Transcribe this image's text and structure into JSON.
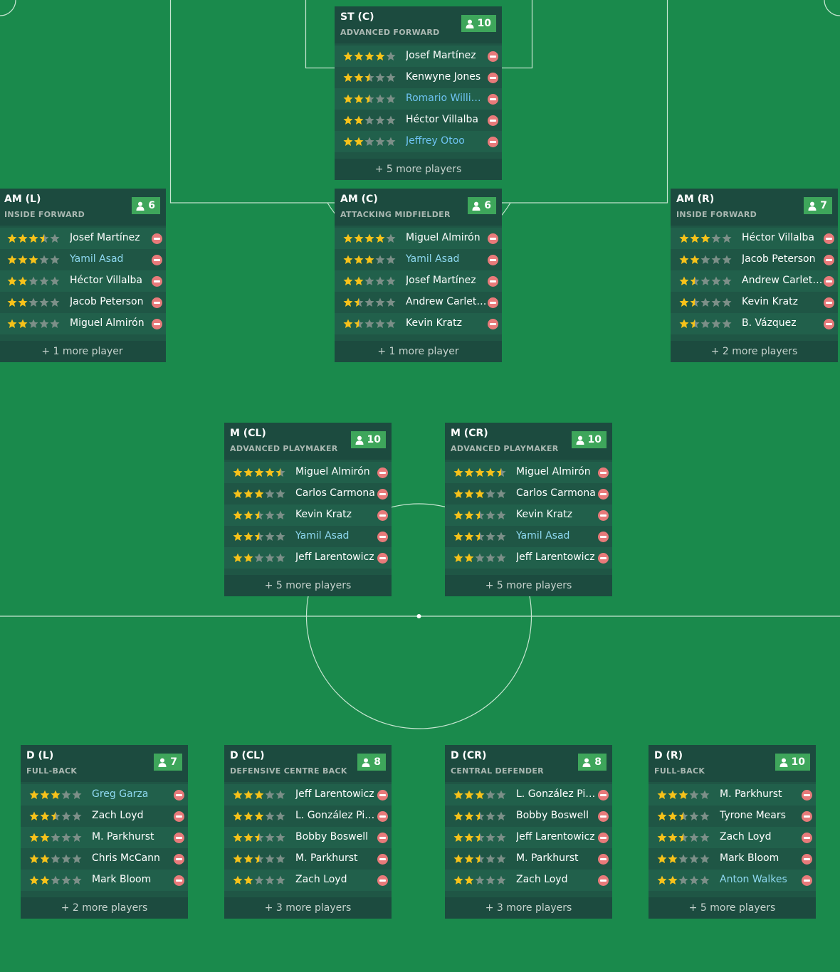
{
  "colors": {
    "pitch": "#1a8a4c",
    "card_body": "#1f5645",
    "card_header": "#1c4b3f",
    "badge": "#3ea65b",
    "star_filled": "#f6c21a",
    "star_empty": "#7c8f88",
    "remove": "#e87a7a",
    "loan_name": "#8ed8f0"
  },
  "icons": {
    "count": "person-icon",
    "rating": "star-icon",
    "remove": "minus-circle-icon"
  },
  "positions": [
    {
      "id": "st-c",
      "position": "ST (C)",
      "role": "ADVANCED FORWARD",
      "count": "10",
      "players": [
        {
          "name": "Josef Martínez",
          "stars": 4,
          "style": ""
        },
        {
          "name": "Kenwyne Jones",
          "stars": 2.5,
          "style": ""
        },
        {
          "name": "Romario Williams",
          "stars": 2.5,
          "style": "blue"
        },
        {
          "name": "Héctor Villalba",
          "stars": 2,
          "style": ""
        },
        {
          "name": "Jeffrey Otoo",
          "stars": 2,
          "style": "blue"
        }
      ],
      "more": "+ 5 more players"
    },
    {
      "id": "am-l",
      "position": "AM (L)",
      "role": "INSIDE FORWARD",
      "count": "6",
      "players": [
        {
          "name": "Josef Martínez",
          "stars": 3.5,
          "style": ""
        },
        {
          "name": "Yamil Asad",
          "stars": 3,
          "style": "loan"
        },
        {
          "name": "Héctor Villalba",
          "stars": 2,
          "style": ""
        },
        {
          "name": "Jacob Peterson",
          "stars": 2,
          "style": ""
        },
        {
          "name": "Miguel Almirón",
          "stars": 2,
          "style": ""
        }
      ],
      "more": "+ 1 more player"
    },
    {
      "id": "am-c",
      "position": "AM (C)",
      "role": "ATTACKING MIDFIELDER",
      "count": "6",
      "players": [
        {
          "name": "Miguel Almirón",
          "stars": 4,
          "style": ""
        },
        {
          "name": "Yamil Asad",
          "stars": 3,
          "style": "loan"
        },
        {
          "name": "Josef Martínez",
          "stars": 2,
          "style": ""
        },
        {
          "name": "Andrew Carleton",
          "stars": 1.5,
          "style": ""
        },
        {
          "name": "Kevin Kratz",
          "stars": 1.5,
          "style": ""
        }
      ],
      "more": "+ 1 more player"
    },
    {
      "id": "am-r",
      "position": "AM (R)",
      "role": "INSIDE FORWARD",
      "count": "7",
      "players": [
        {
          "name": "Héctor Villalba",
          "stars": 3,
          "style": ""
        },
        {
          "name": "Jacob Peterson",
          "stars": 2,
          "style": ""
        },
        {
          "name": "Andrew Carleton",
          "stars": 1.5,
          "style": ""
        },
        {
          "name": "Kevin Kratz",
          "stars": 1.5,
          "style": ""
        },
        {
          "name": "B. Vázquez",
          "stars": 1.5,
          "style": ""
        }
      ],
      "more": "+ 2 more players"
    },
    {
      "id": "m-cl",
      "position": "M (CL)",
      "role": "ADVANCED PLAYMAKER",
      "count": "10",
      "players": [
        {
          "name": "Miguel Almirón",
          "stars": 4.5,
          "style": ""
        },
        {
          "name": "Carlos Carmona",
          "stars": 3,
          "style": ""
        },
        {
          "name": "Kevin Kratz",
          "stars": 2.5,
          "style": ""
        },
        {
          "name": "Yamil Asad",
          "stars": 2.5,
          "style": "loan"
        },
        {
          "name": "Jeff Larentowicz",
          "stars": 2,
          "style": ""
        }
      ],
      "more": "+ 5 more players"
    },
    {
      "id": "m-cr",
      "position": "M (CR)",
      "role": "ADVANCED PLAYMAKER",
      "count": "10",
      "players": [
        {
          "name": "Miguel Almirón",
          "stars": 4.5,
          "style": ""
        },
        {
          "name": "Carlos Carmona",
          "stars": 3,
          "style": ""
        },
        {
          "name": "Kevin Kratz",
          "stars": 2.5,
          "style": ""
        },
        {
          "name": "Yamil Asad",
          "stars": 2.5,
          "style": "loan"
        },
        {
          "name": "Jeff Larentowicz",
          "stars": 2,
          "style": ""
        }
      ],
      "more": "+ 5 more players"
    },
    {
      "id": "d-l",
      "position": "D (L)",
      "role": "FULL-BACK",
      "count": "7",
      "players": [
        {
          "name": "Greg Garza",
          "stars": 3,
          "style": "loan"
        },
        {
          "name": "Zach Loyd",
          "stars": 2.5,
          "style": ""
        },
        {
          "name": "M. Parkhurst",
          "stars": 2,
          "style": ""
        },
        {
          "name": "Chris McCann",
          "stars": 2,
          "style": ""
        },
        {
          "name": "Mark Bloom",
          "stars": 2,
          "style": ""
        }
      ],
      "more": "+ 2 more players"
    },
    {
      "id": "d-cl",
      "position": "D (CL)",
      "role": "DEFENSIVE CENTRE BACK",
      "count": "8",
      "players": [
        {
          "name": "Jeff Larentowicz",
          "stars": 3,
          "style": ""
        },
        {
          "name": "L. González Pir...",
          "stars": 3,
          "style": ""
        },
        {
          "name": "Bobby Boswell",
          "stars": 2.5,
          "style": ""
        },
        {
          "name": "M. Parkhurst",
          "stars": 2.5,
          "style": ""
        },
        {
          "name": "Zach Loyd",
          "stars": 2,
          "style": ""
        }
      ],
      "more": "+ 3 more players"
    },
    {
      "id": "d-cr",
      "position": "D (CR)",
      "role": "CENTRAL DEFENDER",
      "count": "8",
      "players": [
        {
          "name": "L. González Pir...",
          "stars": 3,
          "style": ""
        },
        {
          "name": "Bobby Boswell",
          "stars": 2.5,
          "style": ""
        },
        {
          "name": "Jeff Larentowicz",
          "stars": 2.5,
          "style": ""
        },
        {
          "name": "M. Parkhurst",
          "stars": 2.5,
          "style": ""
        },
        {
          "name": "Zach Loyd",
          "stars": 2,
          "style": ""
        }
      ],
      "more": "+ 3 more players"
    },
    {
      "id": "d-r",
      "position": "D (R)",
      "role": "FULL-BACK",
      "count": "10",
      "players": [
        {
          "name": "M. Parkhurst",
          "stars": 3,
          "style": ""
        },
        {
          "name": "Tyrone Mears",
          "stars": 2.5,
          "style": ""
        },
        {
          "name": "Zach Loyd",
          "stars": 2.5,
          "style": ""
        },
        {
          "name": "Mark Bloom",
          "stars": 2,
          "style": ""
        },
        {
          "name": "Anton Walkes",
          "stars": 2,
          "style": "loan"
        }
      ],
      "more": "+ 5 more players"
    }
  ]
}
